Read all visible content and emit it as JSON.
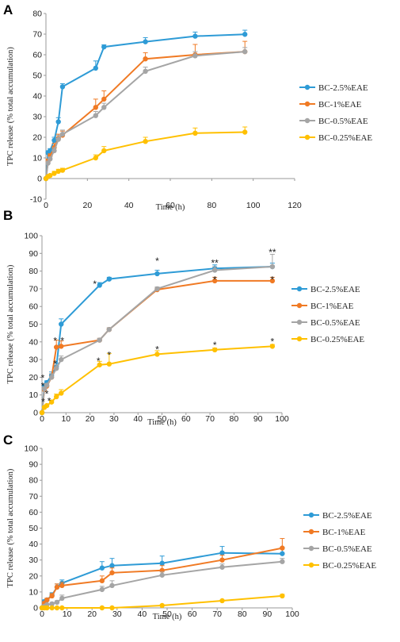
{
  "chart_data": [
    {
      "panel_letter": "A",
      "type": "line",
      "xlabel": "Time (h)",
      "ylabel": "TPC release (% total accumulation)",
      "xlim": [
        0,
        120
      ],
      "ylim": [
        -10,
        80
      ],
      "x_ticks": [
        0,
        20,
        40,
        60,
        80,
        100,
        120
      ],
      "y_ticks": [
        -10,
        0,
        10,
        20,
        30,
        40,
        50,
        60,
        70,
        80
      ],
      "grid": false,
      "legend": "right",
      "x": [
        0,
        1,
        2,
        4,
        6,
        8,
        24,
        28,
        48,
        72,
        96
      ],
      "series": [
        {
          "name": "BC-2.5%EAE",
          "color": "#2E9BD6",
          "values": [
            0,
            12.5,
            13.5,
            18.5,
            27.5,
            44.5,
            53.5,
            63.8,
            66.3,
            69,
            69.9
          ],
          "err": [
            0,
            1,
            1,
            1.5,
            2,
            1.5,
            3.5,
            1,
            2,
            2,
            2
          ]
        },
        {
          "name": "BC-1%EAE",
          "color": "#F07A24",
          "values": [
            0,
            8.5,
            11,
            15,
            19.5,
            21,
            34.5,
            38.5,
            58,
            60,
            61.5
          ],
          "err": [
            0,
            1,
            1,
            2,
            2,
            2,
            4,
            4,
            3,
            5,
            5
          ]
        },
        {
          "name": "BC-0.5%EAE",
          "color": "#A5A5A5",
          "values": [
            0,
            7.5,
            9.5,
            13.5,
            19,
            21.5,
            30.5,
            34.5,
            52,
            59.5,
            61.5
          ],
          "err": [
            0,
            1,
            1,
            1.5,
            2,
            2,
            2,
            2,
            2,
            2,
            2
          ]
        },
        {
          "name": "BC-0.25%EAE",
          "color": "#FFC000",
          "values": [
            0,
            1,
            1.5,
            2.5,
            3.5,
            4,
            10,
            13.5,
            18,
            22,
            22.5
          ],
          "err": [
            0,
            0.5,
            0.5,
            1,
            1,
            1,
            1.5,
            2,
            2,
            2.5,
            2.5
          ]
        }
      ]
    },
    {
      "panel_letter": "B",
      "type": "line",
      "xlabel": "Time (h)",
      "ylabel": "TPC release (% total accumulation)",
      "xlim": [
        0,
        100
      ],
      "ylim": [
        0,
        100
      ],
      "x_ticks": [
        0,
        10,
        20,
        30,
        40,
        50,
        60,
        70,
        80,
        90,
        100
      ],
      "y_ticks": [
        0,
        10,
        20,
        30,
        40,
        50,
        60,
        70,
        80,
        90,
        100
      ],
      "grid": false,
      "legend": "right",
      "x": [
        0,
        1,
        2,
        4,
        6,
        8,
        24,
        28,
        48,
        72,
        96
      ],
      "series": [
        {
          "name": "BC-2.5%EAE",
          "color": "#2E9BD6",
          "values": [
            0,
            15,
            17,
            21,
            26,
            50,
            72,
            75.5,
            78.5,
            81.5,
            82.5
          ],
          "err": [
            0,
            1,
            1,
            2,
            2,
            3,
            1.5,
            1,
            2,
            2,
            2
          ]
        },
        {
          "name": "BC-1%EAE",
          "color": "#F07A24",
          "values": [
            0,
            13,
            15,
            20,
            37,
            37.5,
            41,
            47,
            69.5,
            74.5,
            74.5
          ],
          "err": [
            0,
            1,
            1,
            2,
            4,
            3,
            1,
            1,
            1,
            2,
            2
          ]
        },
        {
          "name": "BC-0.5%EAE",
          "color": "#A5A5A5",
          "values": [
            0,
            13.5,
            15.5,
            20,
            25,
            30,
            41,
            47,
            70,
            80.5,
            82.5
          ],
          "err": [
            0,
            1,
            1,
            2,
            2,
            2,
            1,
            1,
            1,
            2,
            7
          ]
        },
        {
          "name": "BC-0.25%EAE",
          "color": "#FFC000",
          "values": [
            0,
            3,
            4,
            6,
            9,
            11,
            27,
            27.5,
            33,
            35.5,
            37.5
          ],
          "err": [
            0,
            0.5,
            0.5,
            1,
            1.5,
            2,
            2,
            6,
            2,
            1,
            1
          ]
        }
      ],
      "annotations": [
        {
          "text": "*",
          "x": 0.3,
          "y": 20
        },
        {
          "text": "*",
          "x": 0.3,
          "y": 15.5
        },
        {
          "text": "*",
          "x": 2,
          "y": 11
        },
        {
          "text": "*",
          "x": 0.5,
          "y": 6.5
        },
        {
          "text": "*",
          "x": 3,
          "y": 7
        },
        {
          "text": "*",
          "x": 5.5,
          "y": 41
        },
        {
          "text": "*",
          "x": 8.5,
          "y": 41
        },
        {
          "text": "*",
          "x": 5.5,
          "y": 28
        },
        {
          "text": "*",
          "x": 22,
          "y": 73
        },
        {
          "text": "*",
          "x": 23.5,
          "y": 29.5
        },
        {
          "text": "*",
          "x": 28,
          "y": 33
        },
        {
          "text": "*",
          "x": 48,
          "y": 86
        },
        {
          "text": "*",
          "x": 48,
          "y": 36
        },
        {
          "text": "**",
          "x": 72,
          "y": 85
        },
        {
          "text": "*",
          "x": 72,
          "y": 75.5
        },
        {
          "text": "*",
          "x": 72,
          "y": 38.5
        },
        {
          "text": "**",
          "x": 96,
          "y": 91
        },
        {
          "text": "*",
          "x": 96,
          "y": 75.5
        },
        {
          "text": "*",
          "x": 96,
          "y": 40.5
        }
      ]
    },
    {
      "panel_letter": "C",
      "type": "line",
      "xlabel": "Time (h)",
      "ylabel": "TPC release (% total accumulation)",
      "xlim": [
        0,
        100
      ],
      "ylim": [
        0,
        100
      ],
      "x_ticks": [
        0,
        10,
        20,
        30,
        40,
        50,
        60,
        70,
        80,
        90,
        100
      ],
      "y_ticks": [
        0,
        10,
        20,
        30,
        40,
        50,
        60,
        70,
        80,
        90,
        100
      ],
      "grid": false,
      "legend": "right",
      "x": [
        0,
        1,
        2,
        4,
        6,
        8,
        24,
        28,
        48,
        72,
        96
      ],
      "series": [
        {
          "name": "BC-2.5%EAE",
          "color": "#2E9BD6",
          "values": [
            0,
            4,
            5,
            8,
            13,
            15.5,
            25,
            26.5,
            28,
            34.5,
            34
          ],
          "err": [
            0,
            1,
            1,
            1.5,
            2,
            2,
            4,
            4.5,
            4.5,
            4,
            4
          ]
        },
        {
          "name": "BC-1%EAE",
          "color": "#F07A24",
          "values": [
            0,
            3,
            5,
            7.5,
            13,
            14,
            17,
            22,
            23.5,
            30,
            37.5
          ],
          "err": [
            0,
            1,
            1,
            1.5,
            2,
            2,
            3,
            3,
            3,
            3,
            6
          ]
        },
        {
          "name": "BC-0.5%EAE",
          "color": "#A5A5A5",
          "values": [
            0,
            1,
            2,
            2.5,
            3.5,
            6,
            11.5,
            14,
            20.5,
            25.5,
            29
          ],
          "err": [
            0,
            0.5,
            0.5,
            1,
            1,
            2,
            2,
            3,
            2,
            2,
            2
          ]
        },
        {
          "name": "BC-0.25%EAE",
          "color": "#FFC000",
          "values": [
            0,
            0,
            0,
            0,
            0,
            0,
            0,
            0,
            1.5,
            4.5,
            7.5
          ],
          "err": [
            0,
            0.2,
            0.2,
            0.2,
            0.2,
            0.2,
            0.2,
            0.2,
            0.5,
            0.5,
            1
          ]
        }
      ]
    }
  ]
}
